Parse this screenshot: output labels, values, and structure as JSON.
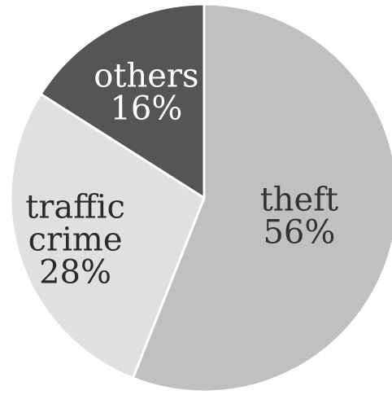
{
  "chart_data": {
    "type": "pie",
    "slices": [
      {
        "label_lines": [
          "theft"
        ],
        "pct_label": "56%",
        "value": 56,
        "color": "#c0c0c0",
        "text_color": "#333333"
      },
      {
        "label_lines": [
          "traffic",
          "crime"
        ],
        "pct_label": "28%",
        "value": 28,
        "color": "#e0e0e0",
        "text_color": "#2a2a2a"
      },
      {
        "label_lines": [
          "others"
        ],
        "pct_label": "16%",
        "value": 16,
        "color": "#555555",
        "text_color": "#ffffff"
      }
    ]
  }
}
